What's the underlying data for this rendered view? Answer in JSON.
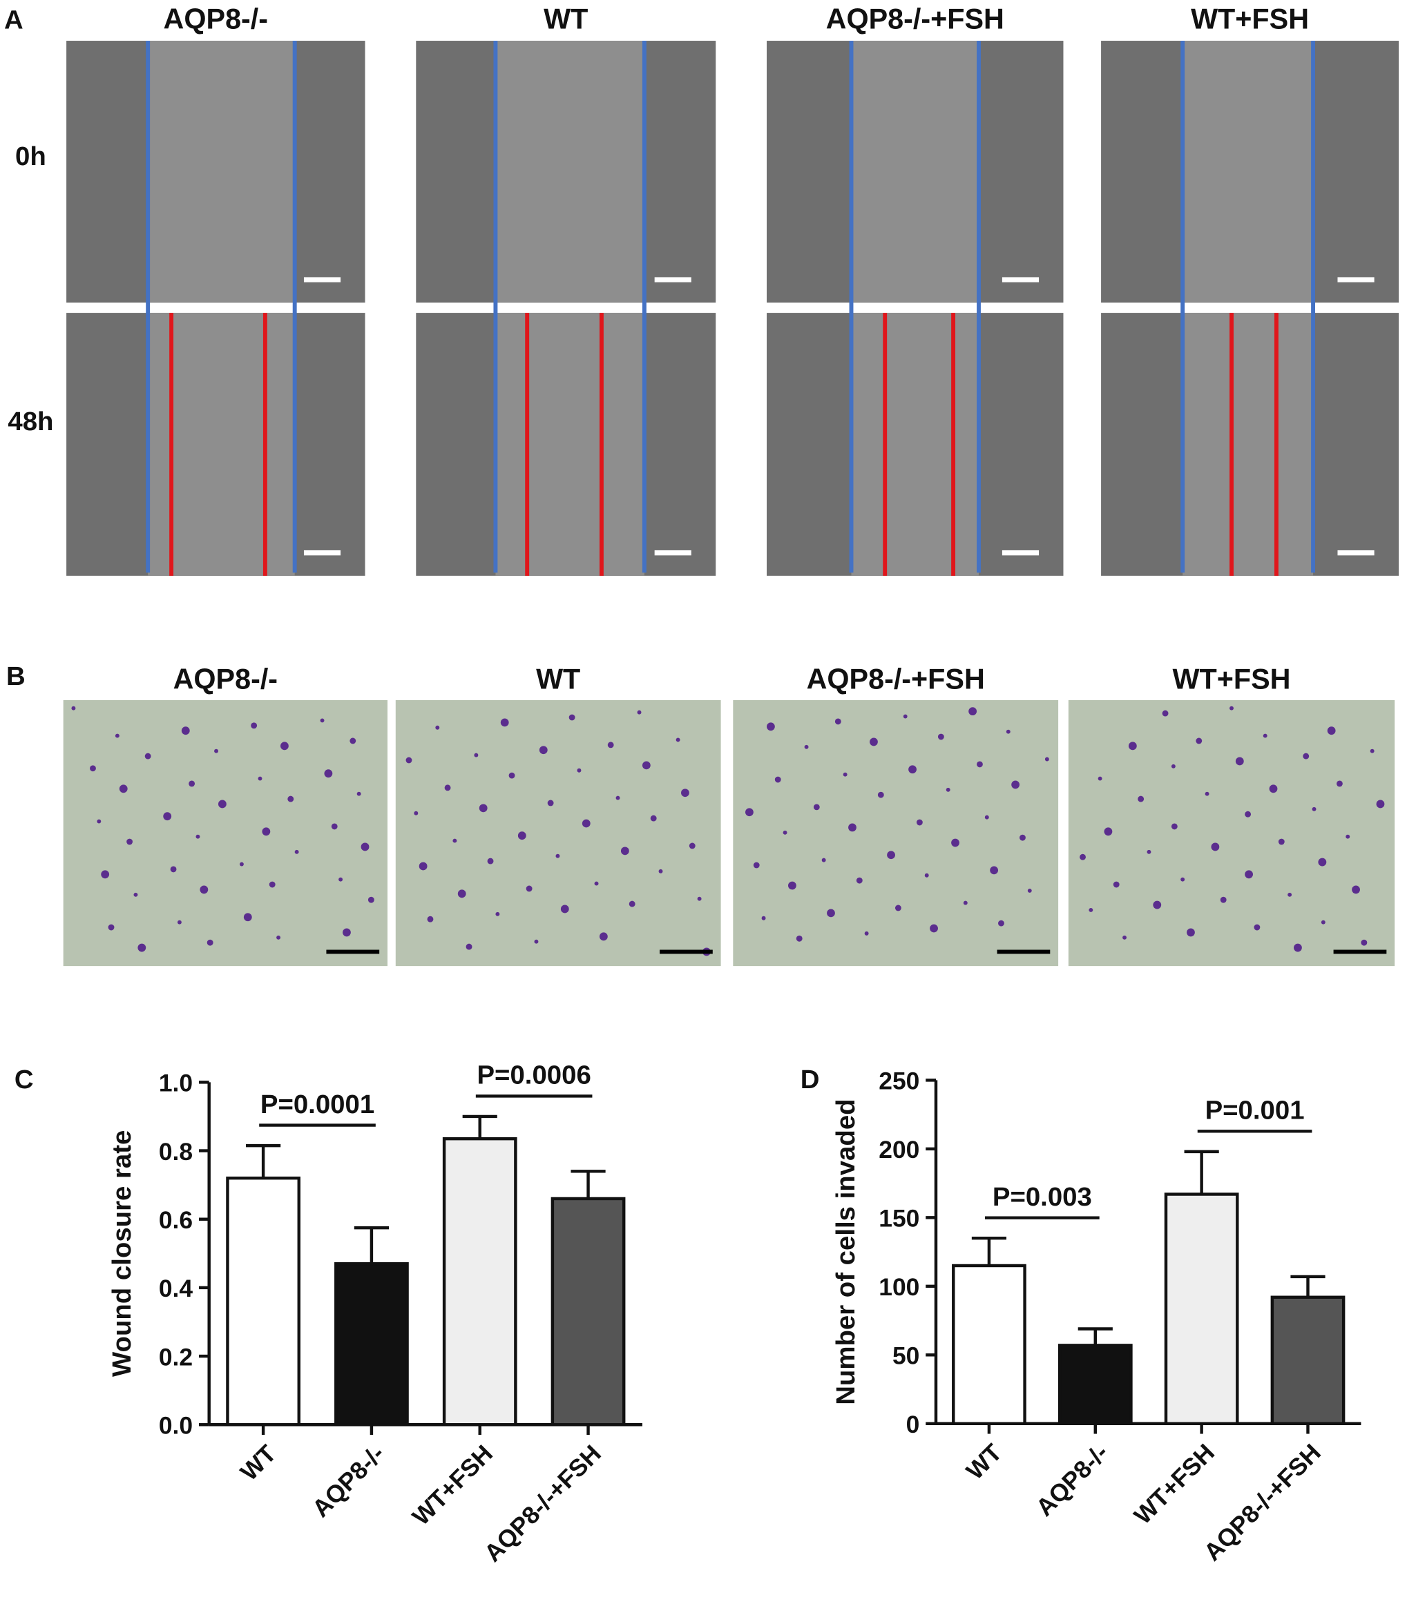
{
  "panel_a": {
    "label": "A",
    "columns": [
      "AQP8-/-",
      "WT",
      "AQP8-/-+FSH",
      "WT+FSH"
    ],
    "rows": [
      "0h",
      "48h"
    ]
  },
  "panel_b": {
    "label": "B",
    "columns": [
      "AQP8-/-",
      "WT",
      "AQP8-/-+FSH",
      "WT+FSH"
    ]
  },
  "chart_data": [
    {
      "type": "bar",
      "panel": "C",
      "y_label": "Wound closure rate",
      "categories": [
        "WT",
        "AQP8-/-",
        "WT+FSH",
        "AQP8-/-+FSH"
      ],
      "values": [
        0.72,
        0.47,
        0.835,
        0.66
      ],
      "errors": [
        0.095,
        0.105,
        0.065,
        0.08
      ],
      "colors": [
        "#ffffff",
        "#111111",
        "#eeeeee",
        "#555555"
      ],
      "ylim": [
        0,
        1
      ],
      "yticks": [
        {
          "value": 0,
          "label": "0.0"
        },
        0.2,
        0.4,
        0.6,
        0.8,
        {
          "value": 1,
          "label": "1.0"
        }
      ],
      "annotations": [
        {
          "text": "P=0.0001",
          "between": [
            "WT",
            "AQP8-/-"
          ]
        },
        {
          "text": "P=0.0006",
          "between": [
            "WT+FSH",
            "AQP8-/-+FSH"
          ]
        }
      ]
    },
    {
      "type": "bar",
      "panel": "D",
      "y_label": "Number of cells invaded",
      "categories": [
        "WT",
        "AQP8-/-",
        "WT+FSH",
        "AQP8-/-+FSH"
      ],
      "values": [
        115,
        57,
        167,
        92
      ],
      "errors": [
        20,
        12,
        31,
        15
      ],
      "colors": [
        "#ffffff",
        "#111111",
        "#eeeeee",
        "#555555"
      ],
      "ylim": [
        0,
        250
      ],
      "yticks": [
        0,
        50,
        100,
        150,
        200,
        250
      ],
      "annotations": [
        {
          "text": "P=0.003",
          "between": [
            "WT",
            "AQP8-/-"
          ]
        },
        {
          "text": "P=0.001",
          "between": [
            "WT+FSH",
            "AQP8-/-+FSH"
          ]
        }
      ]
    }
  ]
}
